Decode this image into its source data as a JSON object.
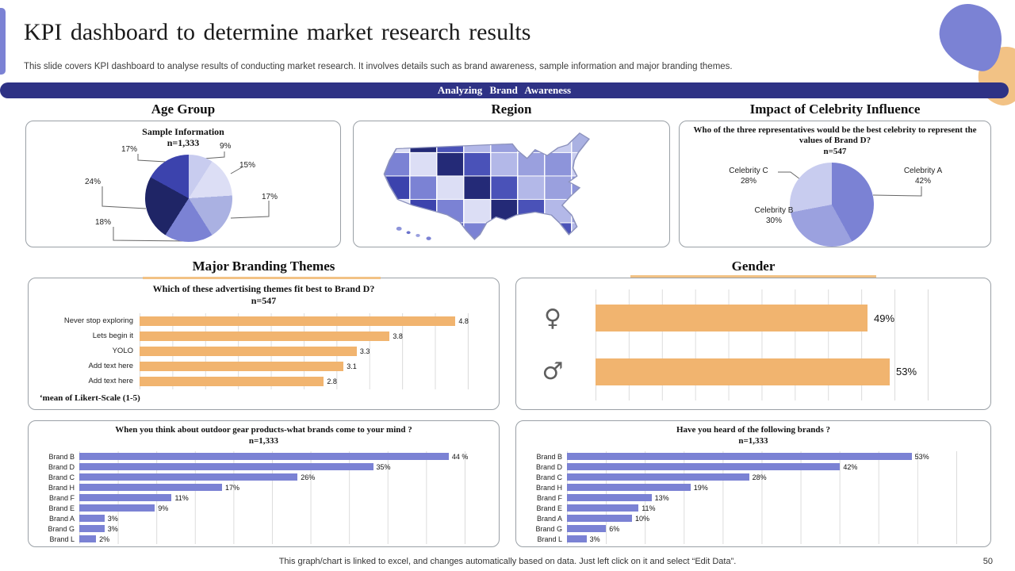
{
  "page": {
    "title": "KPI dashboard to determine market research results",
    "subtitle": "This slide covers KPI dashboard to analyse results of conducting market research. It involves details such as brand awareness, sample information and major branding themes.",
    "banner": "Analyzing Brand Awareness",
    "footer_note": "This graph/chart is linked to excel, and changes automatically based on data. Just left click on it and select “Edit Data”.",
    "page_number": "50"
  },
  "section_headers": {
    "age_group": "Age Group",
    "region": "Region",
    "celebrity": "Impact of Celebrity Influence",
    "branding_themes": "Major Branding Themes",
    "gender": "Gender"
  },
  "colors": {
    "accent_purple": "#7b82d4",
    "accent_orange": "#f1b46f",
    "banner_navy": "#2e3285",
    "underline_tan": "#f2c285"
  },
  "chart_data": [
    {
      "id": "age_pie",
      "type": "pie",
      "title": "Sample Information",
      "sample": "n=1,333",
      "slices": [
        {
          "label": "9%",
          "value": 9,
          "color": "#c8ccef"
        },
        {
          "label": "15%",
          "value": 15,
          "color": "#dcdef5"
        },
        {
          "label": "17%",
          "value": 17,
          "color": "#aab1e2"
        },
        {
          "label": "18%",
          "value": 18,
          "color": "#7b82d4"
        },
        {
          "label": "24%",
          "value": 24,
          "color": "#1f2566"
        },
        {
          "label": "17%",
          "value": 17,
          "color": "#3c43ad"
        }
      ]
    },
    {
      "id": "region_map",
      "type": "choropleth",
      "region": "United States",
      "palette": [
        "#dcdef5",
        "#8d94da",
        "#3c43ad",
        "#b3b8e8",
        "#6a72cc",
        "#242a77",
        "#c8ccef",
        "#7b82d4",
        "#9aa0de",
        "#e6e8f8",
        "#4a52b8",
        "#aab1e2"
      ]
    },
    {
      "id": "celebrity_pie",
      "type": "pie",
      "title": "Who of the three representatives would be the best celebrity to represent the values of Brand D?",
      "sample": "n=547",
      "slices": [
        {
          "label": "Celebrity A",
          "pct_label": "42%",
          "value": 42,
          "color": "#7b82d4"
        },
        {
          "label": "Celebrity B",
          "pct_label": "30%",
          "value": 30,
          "color": "#9ba1df"
        },
        {
          "label": "Celebrity C",
          "pct_label": "28%",
          "value": 28,
          "color": "#c8ccef"
        }
      ]
    },
    {
      "id": "branding_themes",
      "type": "bar",
      "orientation": "horizontal",
      "title": "Which of these advertising themes fit best to Brand D?",
      "sample": "n=547",
      "categories": [
        "Never stop exploring",
        "Lets begin it",
        "YOLO",
        "Add text here",
        "Add text here"
      ],
      "values": [
        4.8,
        3.8,
        3.3,
        3.1,
        2.8
      ],
      "value_labels": [
        "4.8",
        "3.8",
        "3.3",
        "3.1",
        "2.8"
      ],
      "xlim": [
        0,
        5
      ],
      "grid": true,
      "bar_color": "#f1b46f",
      "footnote": "‘mean of Likert-Scale (1-5)"
    },
    {
      "id": "gender",
      "type": "bar",
      "orientation": "horizontal",
      "icons": [
        "female-icon",
        "male-icon"
      ],
      "values": [
        49,
        53
      ],
      "value_labels": [
        "49%",
        "53%"
      ],
      "xlim": [
        0,
        60
      ],
      "grid": true,
      "bar_color": "#f1b46f"
    },
    {
      "id": "brands_unaided",
      "type": "bar",
      "orientation": "horizontal",
      "title": "When you think about outdoor gear products-what brands come to your mind ?",
      "sample": "n=1,333",
      "categories": [
        "Brand B",
        "Brand D",
        "Brand C",
        "Brand H",
        "Brand F",
        "Brand E",
        "Brand A",
        "Brand G",
        "Brand L"
      ],
      "values": [
        44,
        35,
        26,
        17,
        11,
        9,
        3,
        3,
        2
      ],
      "value_labels": [
        "44 %",
        "35%",
        "26%",
        "17%",
        "11%",
        "9%",
        "3%",
        "3%",
        "2%"
      ],
      "xlim": [
        0,
        46
      ],
      "grid": true,
      "bar_color": "#7b82d4"
    },
    {
      "id": "brands_aided",
      "type": "bar",
      "orientation": "horizontal",
      "title": "Have you heard of the following brands ?",
      "sample": "n=1,333",
      "categories": [
        "Brand B",
        "Brand D",
        "Brand C",
        "Brand H",
        "Brand F",
        "Brand E",
        "Brand A",
        "Brand G",
        "Brand L"
      ],
      "values": [
        53,
        42,
        28,
        19,
        13,
        11,
        10,
        6,
        3
      ],
      "value_labels": [
        "53%",
        "42%",
        "28%",
        "19%",
        "13%",
        "11%",
        "10%",
        "6%",
        "3%"
      ],
      "xlim": [
        0,
        60
      ],
      "grid": true,
      "bar_color": "#7b82d4"
    }
  ]
}
